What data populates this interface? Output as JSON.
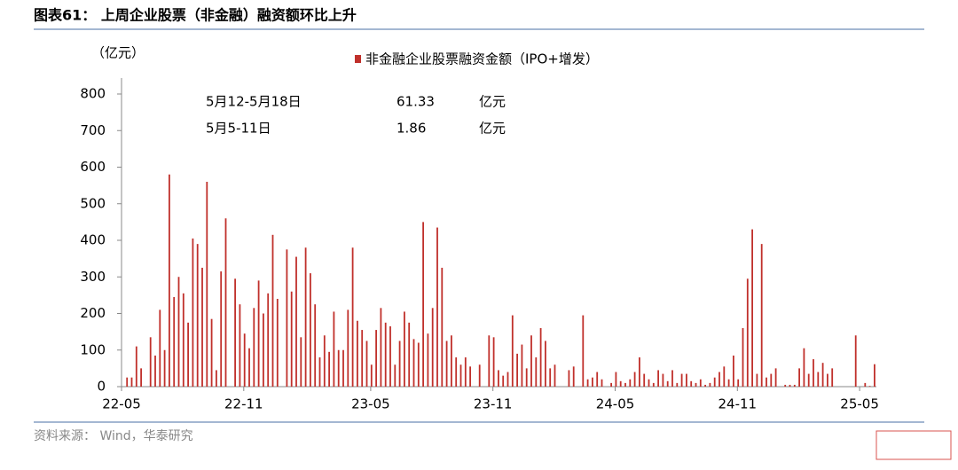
{
  "header": {
    "title": "图表61：  上周企业股票（非金融）融资额环比上升"
  },
  "chart_data": {
    "type": "bar",
    "y_label": "（亿元）",
    "categories": [
      "22-05",
      null,
      null,
      null,
      null,
      null,
      null,
      null,
      null,
      null,
      null,
      null,
      null,
      null,
      null,
      null,
      null,
      null,
      null,
      null,
      null,
      null,
      null,
      null,
      null,
      null,
      "22-11",
      null,
      null,
      null,
      null,
      null,
      null,
      null,
      null,
      null,
      null,
      null,
      null,
      null,
      null,
      null,
      null,
      null,
      null,
      null,
      null,
      null,
      null,
      null,
      null,
      null,
      null,
      "23-05",
      null,
      null,
      null,
      null,
      null,
      null,
      null,
      null,
      null,
      null,
      null,
      null,
      null,
      null,
      null,
      null,
      null,
      null,
      null,
      null,
      null,
      null,
      null,
      null,
      null,
      "23-11",
      null,
      null,
      null,
      null,
      null,
      null,
      null,
      null,
      null,
      null,
      null,
      null,
      null,
      null,
      null,
      null,
      null,
      null,
      null,
      null,
      null,
      null,
      null,
      null,
      null,
      "24-05",
      null,
      null,
      null,
      null,
      null,
      null,
      null,
      null,
      null,
      null,
      null,
      null,
      null,
      null,
      null,
      null,
      null,
      null,
      null,
      null,
      null,
      null,
      null,
      null,
      null,
      "24-11",
      null,
      null,
      null,
      null,
      null,
      null,
      null,
      null,
      null,
      null,
      null,
      null,
      null,
      null,
      null,
      null,
      null,
      null,
      null,
      null,
      null,
      null,
      null,
      null,
      null,
      "25-05",
      null,
      null,
      null
    ],
    "series": [
      {
        "name": "非金融企业股票融资金额（IPO+增发）",
        "color": "#c0302b",
        "values": [
          0,
          25,
          25,
          110,
          50,
          0,
          135,
          85,
          210,
          100,
          580,
          245,
          300,
          255,
          175,
          405,
          390,
          325,
          560,
          185,
          45,
          315,
          460,
          0,
          295,
          225,
          145,
          105,
          215,
          290,
          200,
          255,
          415,
          240,
          0,
          375,
          260,
          355,
          135,
          380,
          310,
          225,
          80,
          140,
          95,
          205,
          100,
          100,
          210,
          380,
          180,
          155,
          125,
          60,
          155,
          215,
          175,
          165,
          60,
          125,
          205,
          175,
          130,
          120,
          450,
          145,
          215,
          435,
          325,
          125,
          140,
          80,
          60,
          80,
          55,
          0,
          60,
          0,
          140,
          135,
          45,
          30,
          40,
          195,
          90,
          115,
          50,
          140,
          80,
          160,
          125,
          50,
          60,
          0,
          0,
          45,
          55,
          0,
          195,
          20,
          25,
          40,
          20,
          0,
          10,
          40,
          15,
          10,
          20,
          40,
          80,
          35,
          20,
          10,
          45,
          35,
          15,
          45,
          10,
          35,
          35,
          15,
          10,
          20,
          5,
          10,
          25,
          40,
          55,
          20,
          85,
          20,
          160,
          295,
          430,
          35,
          390,
          25,
          35,
          50,
          0,
          5,
          5,
          5,
          50,
          105,
          35,
          75,
          40,
          65,
          35,
          50,
          0,
          0,
          0,
          0,
          140,
          0,
          10,
          1.86,
          61.33
        ]
      }
    ],
    "ylim": [
      0,
      800
    ],
    "yticks": [
      0,
      100,
      200,
      300,
      400,
      500,
      600,
      700,
      800
    ],
    "annotations": [
      [
        "5月12-5月18日",
        "61.33",
        "亿元"
      ],
      [
        "5月5-11日",
        "1.86",
        "亿元"
      ]
    ]
  },
  "footer": {
    "source": "资料来源：  Wind，华泰研究"
  }
}
